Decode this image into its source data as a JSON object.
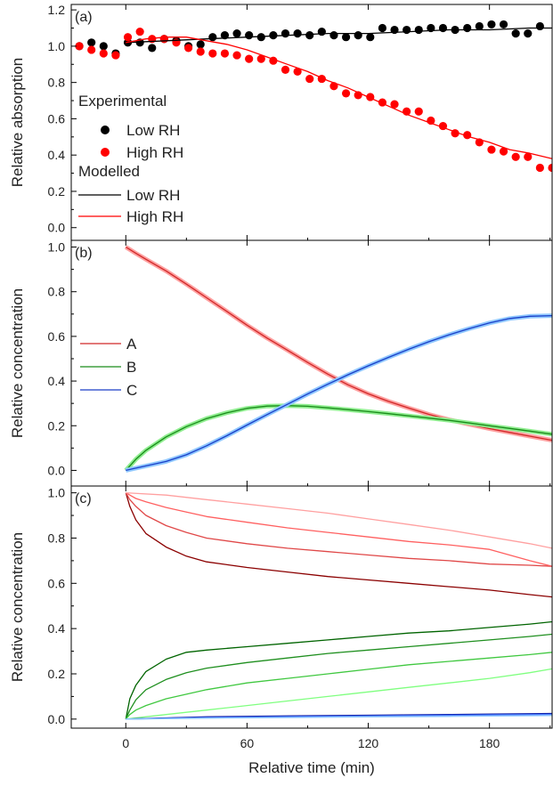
{
  "chart_data": [
    {
      "panel_label": "(a)",
      "type": "scatter",
      "ylabel": "Relative absorption",
      "xlim": [
        -27,
        211
      ],
      "ylim": [
        -0.07,
        1.23
      ],
      "yticks": [
        0.0,
        0.2,
        0.4,
        0.6,
        0.8,
        1.0,
        1.2
      ],
      "ytick_labels": [
        "0.0",
        "0.2",
        "0.4",
        "0.6",
        "0.8",
        "1.0",
        "1.2"
      ],
      "legend": {
        "placement": "left",
        "group1": "Experimental",
        "group2": "Modelled",
        "entries": [
          "Low RH",
          "High RH",
          "Low RH",
          "High RH"
        ]
      },
      "series": [
        {
          "name": "Low RH",
          "kind": "points",
          "color": "#000000",
          "x": [
            -23,
            -17,
            -11,
            -5,
            1,
            7,
            13,
            19,
            25,
            31,
            37,
            43,
            49,
            55,
            61,
            67,
            73,
            79,
            85,
            91,
            97,
            103,
            109,
            115,
            121,
            127,
            133,
            139,
            145,
            151,
            157,
            163,
            169,
            175,
            181,
            187,
            193,
            199,
            205
          ],
          "y": [
            1.0,
            1.02,
            1.0,
            0.96,
            1.02,
            1.02,
            0.99,
            1.04,
            1.03,
            1.0,
            1.01,
            1.05,
            1.06,
            1.07,
            1.06,
            1.05,
            1.06,
            1.07,
            1.07,
            1.06,
            1.08,
            1.06,
            1.05,
            1.06,
            1.05,
            1.1,
            1.09,
            1.09,
            1.09,
            1.1,
            1.1,
            1.09,
            1.1,
            1.11,
            1.12,
            1.12,
            1.07,
            1.07,
            1.11
          ]
        },
        {
          "name": "High RH",
          "kind": "points",
          "color": "#ff0000",
          "x": [
            -23,
            -17,
            -11,
            -5,
            1,
            7,
            13,
            19,
            25,
            31,
            37,
            43,
            49,
            55,
            61,
            67,
            73,
            79,
            85,
            91,
            97,
            103,
            109,
            115,
            121,
            127,
            133,
            139,
            145,
            151,
            157,
            163,
            169,
            175,
            181,
            187,
            193,
            199,
            205,
            211
          ],
          "y": [
            1.0,
            0.98,
            0.96,
            0.95,
            1.05,
            1.08,
            1.04,
            1.04,
            1.02,
            0.99,
            0.97,
            0.96,
            0.96,
            0.95,
            0.93,
            0.93,
            0.92,
            0.87,
            0.86,
            0.82,
            0.82,
            0.78,
            0.74,
            0.73,
            0.72,
            0.69,
            0.68,
            0.64,
            0.64,
            0.59,
            0.56,
            0.52,
            0.51,
            0.47,
            0.43,
            0.42,
            0.39,
            0.39,
            0.33,
            0.33
          ]
        },
        {
          "name": "Low RH",
          "kind": "line",
          "color": "#000000",
          "x": [
            0,
            20,
            40,
            60,
            80,
            100,
            120,
            140,
            160,
            180,
            200,
            211
          ],
          "y": [
            1.02,
            1.03,
            1.04,
            1.05,
            1.06,
            1.07,
            1.07,
            1.08,
            1.09,
            1.09,
            1.1,
            1.1
          ]
        },
        {
          "name": "High RH",
          "kind": "line",
          "color": "#ff0000",
          "x": [
            0,
            10,
            20,
            30,
            40,
            50,
            60,
            70,
            80,
            90,
            100,
            110,
            120,
            130,
            140,
            150,
            160,
            170,
            180,
            190,
            200,
            211
          ],
          "y": [
            1.02,
            1.04,
            1.05,
            1.05,
            1.03,
            1.01,
            0.98,
            0.94,
            0.9,
            0.86,
            0.81,
            0.77,
            0.72,
            0.67,
            0.62,
            0.58,
            0.54,
            0.5,
            0.47,
            0.43,
            0.41,
            0.38
          ]
        }
      ]
    },
    {
      "panel_label": "(b)",
      "type": "line",
      "ylabel": "Relative concentration",
      "xlim": [
        -27,
        211
      ],
      "ylim": [
        -0.07,
        1.03
      ],
      "yticks": [
        0.0,
        0.2,
        0.4,
        0.6,
        0.8,
        1.0
      ],
      "ytick_labels": [
        "0.0",
        "0.2",
        "0.4",
        "0.6",
        "0.8",
        "1.0"
      ],
      "legend": {
        "placement": "left",
        "entries": [
          "A",
          "B",
          "C"
        ]
      },
      "series": [
        {
          "name": "A",
          "color": "#d02828",
          "shade": "#ffa0a0",
          "x": [
            0,
            5,
            10,
            20,
            30,
            40,
            50,
            60,
            70,
            80,
            90,
            100,
            110,
            120,
            130,
            140,
            150,
            160,
            170,
            180,
            190,
            200,
            211
          ],
          "y": [
            1.0,
            0.972,
            0.945,
            0.893,
            0.834,
            0.773,
            0.712,
            0.65,
            0.592,
            0.538,
            0.483,
            0.431,
            0.383,
            0.343,
            0.309,
            0.279,
            0.251,
            0.227,
            0.206,
            0.187,
            0.17,
            0.153,
            0.135
          ]
        },
        {
          "name": "B",
          "color": "#1a8c1a",
          "shade": "#90ee90",
          "x": [
            0,
            5,
            10,
            20,
            30,
            40,
            50,
            60,
            70,
            80,
            90,
            100,
            110,
            120,
            130,
            140,
            150,
            160,
            170,
            180,
            190,
            200,
            211
          ],
          "y": [
            0.0,
            0.05,
            0.09,
            0.15,
            0.196,
            0.232,
            0.258,
            0.278,
            0.288,
            0.29,
            0.287,
            0.28,
            0.272,
            0.263,
            0.254,
            0.244,
            0.234,
            0.224,
            0.212,
            0.2,
            0.188,
            0.176,
            0.162
          ]
        },
        {
          "name": "C",
          "color": "#1a3fc8",
          "shade": "#90c8ff",
          "x": [
            0,
            5,
            10,
            20,
            30,
            40,
            50,
            60,
            70,
            80,
            90,
            100,
            110,
            120,
            130,
            140,
            150,
            160,
            170,
            180,
            190,
            200,
            211
          ],
          "y": [
            0.0,
            0.01,
            0.02,
            0.04,
            0.07,
            0.11,
            0.155,
            0.203,
            0.25,
            0.296,
            0.342,
            0.386,
            0.428,
            0.468,
            0.506,
            0.542,
            0.576,
            0.607,
            0.635,
            0.66,
            0.68,
            0.69,
            0.693
          ]
        }
      ]
    },
    {
      "panel_label": "(c)",
      "type": "line",
      "ylabel": "Relative concentration",
      "xlabel": "Relative time (min)",
      "xlim": [
        -27,
        211
      ],
      "ylim": [
        -0.04,
        1.03
      ],
      "xticks": [
        0,
        60,
        120,
        180
      ],
      "xtick_labels": [
        "0",
        "60",
        "120",
        "180"
      ],
      "yticks": [
        0.0,
        0.2,
        0.4,
        0.6,
        0.8,
        1.0
      ],
      "ytick_labels": [
        "0.0",
        "0.2",
        "0.4",
        "0.6",
        "0.8",
        "1.0"
      ],
      "series": [
        {
          "color": "#8b0000",
          "x": [
            0,
            2,
            5,
            10,
            20,
            30,
            40,
            60,
            80,
            100,
            120,
            140,
            160,
            180,
            200,
            211
          ],
          "y": [
            1.0,
            0.94,
            0.88,
            0.82,
            0.76,
            0.72,
            0.695,
            0.67,
            0.65,
            0.63,
            0.615,
            0.6,
            0.585,
            0.57,
            0.55,
            0.54
          ]
        },
        {
          "color": "#e04848",
          "x": [
            0,
            2,
            5,
            10,
            20,
            30,
            40,
            60,
            80,
            100,
            120,
            140,
            160,
            180,
            200,
            211
          ],
          "y": [
            1.0,
            0.97,
            0.94,
            0.9,
            0.855,
            0.825,
            0.8,
            0.775,
            0.755,
            0.74,
            0.725,
            0.71,
            0.7,
            0.685,
            0.68,
            0.675
          ]
        },
        {
          "color": "#ff6060",
          "x": [
            0,
            2,
            5,
            10,
            20,
            30,
            40,
            60,
            80,
            100,
            120,
            140,
            160,
            180,
            200,
            211
          ],
          "y": [
            1.0,
            0.99,
            0.975,
            0.96,
            0.935,
            0.915,
            0.895,
            0.87,
            0.845,
            0.825,
            0.805,
            0.785,
            0.77,
            0.75,
            0.7,
            0.675
          ]
        },
        {
          "color": "#ffa0a0",
          "x": [
            0,
            20,
            40,
            60,
            80,
            100,
            120,
            140,
            160,
            180,
            200,
            211
          ],
          "y": [
            1.0,
            0.99,
            0.97,
            0.95,
            0.93,
            0.91,
            0.885,
            0.86,
            0.835,
            0.805,
            0.775,
            0.755
          ]
        },
        {
          "color": "#006400",
          "x": [
            0,
            2,
            5,
            10,
            20,
            30,
            40,
            60,
            80,
            100,
            120,
            140,
            160,
            180,
            200,
            211
          ],
          "y": [
            0.0,
            0.09,
            0.15,
            0.21,
            0.265,
            0.295,
            0.305,
            0.32,
            0.335,
            0.35,
            0.365,
            0.38,
            0.39,
            0.405,
            0.42,
            0.43
          ]
        },
        {
          "color": "#1f8f1f",
          "x": [
            0,
            2,
            5,
            10,
            20,
            30,
            40,
            60,
            80,
            100,
            120,
            140,
            160,
            180,
            200,
            211
          ],
          "y": [
            0.0,
            0.04,
            0.085,
            0.13,
            0.175,
            0.205,
            0.225,
            0.25,
            0.27,
            0.29,
            0.305,
            0.32,
            0.335,
            0.35,
            0.365,
            0.375
          ]
        },
        {
          "color": "#40c840",
          "x": [
            0,
            2,
            5,
            10,
            20,
            30,
            40,
            60,
            80,
            100,
            120,
            140,
            160,
            180,
            200,
            211
          ],
          "y": [
            0.0,
            0.02,
            0.04,
            0.06,
            0.09,
            0.11,
            0.13,
            0.16,
            0.18,
            0.2,
            0.22,
            0.24,
            0.255,
            0.27,
            0.285,
            0.295
          ]
        },
        {
          "color": "#80ff80",
          "x": [
            0,
            20,
            40,
            60,
            80,
            100,
            120,
            140,
            160,
            180,
            200,
            211
          ],
          "y": [
            0.0,
            0.02,
            0.04,
            0.06,
            0.08,
            0.1,
            0.12,
            0.14,
            0.16,
            0.18,
            0.205,
            0.222
          ]
        },
        {
          "color": "#00008b",
          "x": [
            0,
            40,
            80,
            120,
            160,
            211
          ],
          "y": [
            0.0,
            0.01,
            0.014,
            0.017,
            0.02,
            0.025
          ]
        },
        {
          "color": "#1a3fc8",
          "x": [
            0,
            40,
            80,
            120,
            160,
            211
          ],
          "y": [
            0.0,
            0.008,
            0.012,
            0.015,
            0.019,
            0.023
          ]
        },
        {
          "color": "#5080ff",
          "x": [
            0,
            40,
            80,
            120,
            160,
            211
          ],
          "y": [
            0.0,
            0.006,
            0.01,
            0.013,
            0.016,
            0.02
          ]
        },
        {
          "color": "#90c8ff",
          "x": [
            0,
            40,
            80,
            120,
            160,
            211
          ],
          "y": [
            0.0,
            0.004,
            0.007,
            0.01,
            0.012,
            0.016
          ]
        }
      ]
    }
  ]
}
